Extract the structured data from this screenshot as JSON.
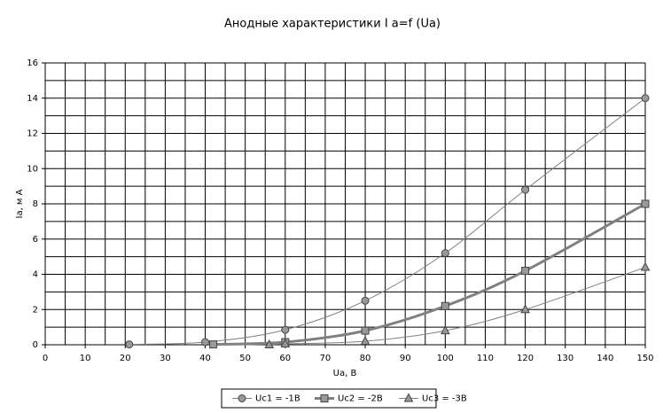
{
  "chart_data": {
    "type": "line",
    "title": "Анодные характеристики I a=f (Ua)",
    "x_label": "Ua, В",
    "y_label": "Ia, м А",
    "xlim": [
      0,
      150
    ],
    "xticks": [
      0,
      10,
      20,
      30,
      40,
      50,
      60,
      70,
      80,
      90,
      100,
      110,
      120,
      130,
      140,
      150
    ],
    "xgrid": [
      0,
      5,
      10,
      15,
      20,
      25,
      30,
      35,
      40,
      45,
      50,
      55,
      60,
      65,
      70,
      75,
      80,
      85,
      90,
      95,
      100,
      105,
      110,
      115,
      120,
      125,
      130,
      135,
      140,
      145,
      150
    ],
    "ylim": [
      0,
      16
    ],
    "yticks": [
      0,
      2,
      4,
      6,
      8,
      10,
      12,
      14,
      16
    ],
    "ygrid": [
      0,
      1,
      2,
      3,
      4,
      5,
      6,
      7,
      8,
      9,
      10,
      11,
      12,
      13,
      14,
      15,
      16
    ],
    "grid": true,
    "legend": "bottom",
    "series": [
      {
        "name": "Uc1 = -1В",
        "color": "#808080",
        "marker": "circle",
        "width": 1,
        "x": [
          21,
          40,
          60,
          80,
          100,
          120,
          150
        ],
        "values": [
          0.02,
          0.15,
          0.85,
          2.5,
          5.2,
          8.8,
          14
        ]
      },
      {
        "name": "Uc2 = -2В",
        "color": "#808080",
        "marker": "square",
        "width": 3,
        "x": [
          42,
          60,
          80,
          100,
          120,
          150
        ],
        "values": [
          0.02,
          0.15,
          0.8,
          2.2,
          4.2,
          8
        ]
      },
      {
        "name": "Uc3 = -3В",
        "color": "#808080",
        "marker": "triangle",
        "width": 1,
        "x": [
          56,
          60,
          80,
          100,
          120,
          150
        ],
        "values": [
          0,
          0.05,
          0.2,
          0.8,
          2,
          4.4
        ]
      }
    ]
  }
}
